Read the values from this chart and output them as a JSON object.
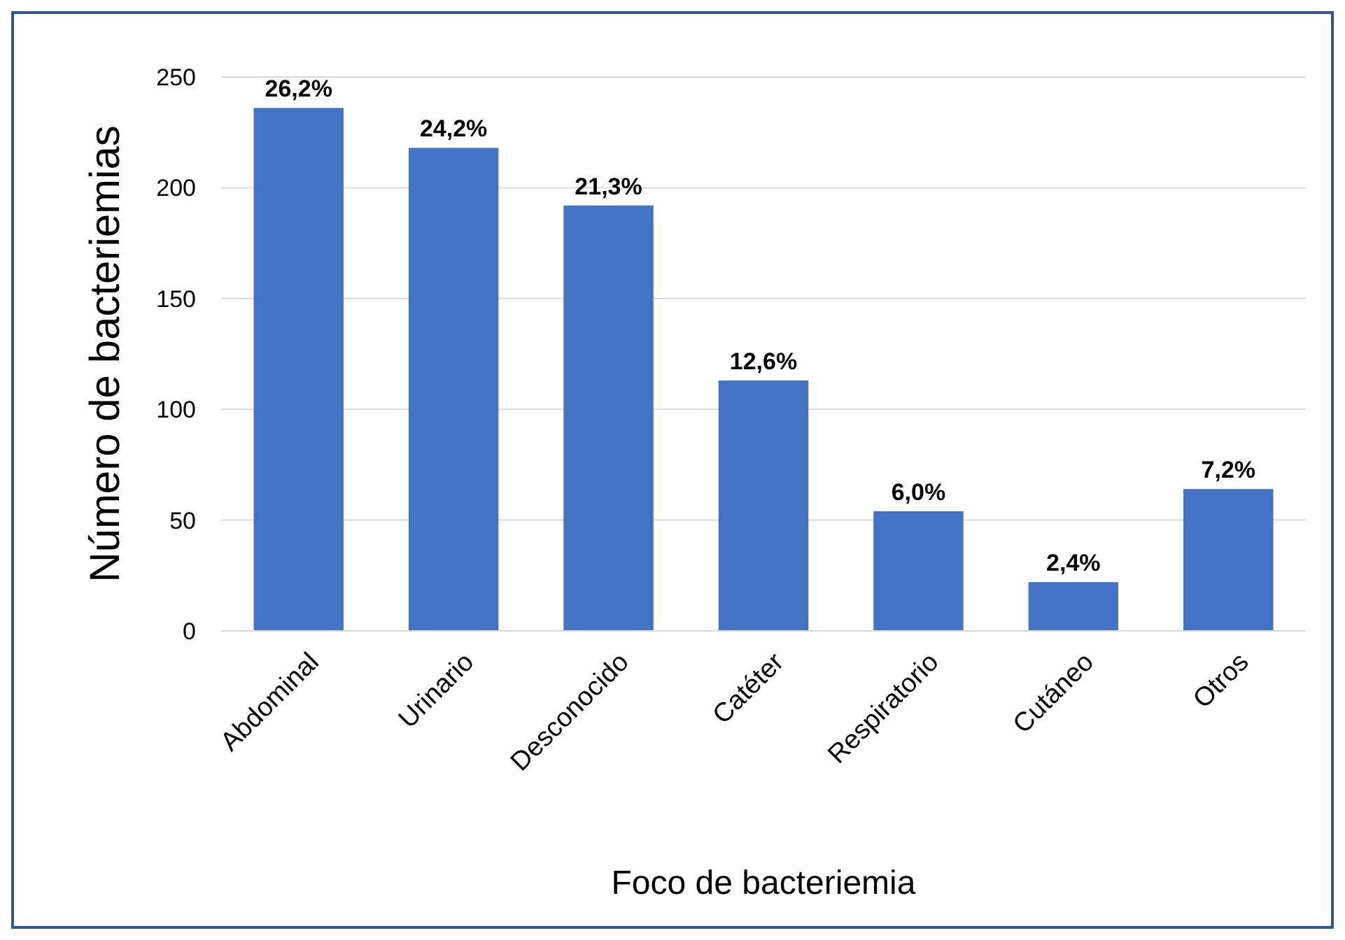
{
  "chart_data": {
    "type": "bar",
    "xlabel": "Foco de bacteriemia",
    "ylabel": "Número de bacteriemias",
    "categories": [
      "Abdominal",
      "Urinario",
      "Desconocido",
      "Catéter",
      "Respiratorio",
      "Cutáneo",
      "Otros"
    ],
    "values": [
      236,
      218,
      192,
      113,
      54,
      22,
      64
    ],
    "annotations": [
      {
        "text": "26,2%",
        "x": "Abdominal",
        "y": 236
      },
      {
        "text": "24,2%",
        "x": "Urinario",
        "y": 218
      },
      {
        "text": "21,3%",
        "x": "Desconocido",
        "y": 192
      },
      {
        "text": "12,6%",
        "x": "Catéter",
        "y": 113
      },
      {
        "text": "6,0%",
        "x": "Respiratorio",
        "y": 54
      },
      {
        "text": "2,4%",
        "x": "Cutáneo",
        "y": 22
      },
      {
        "text": "7,2%",
        "x": "Otros",
        "y": 64
      }
    ],
    "color": "#4472c4",
    "ylim": [
      0,
      250
    ],
    "yticks": [
      0,
      50,
      100,
      150,
      200,
      250
    ],
    "grid": "y"
  }
}
